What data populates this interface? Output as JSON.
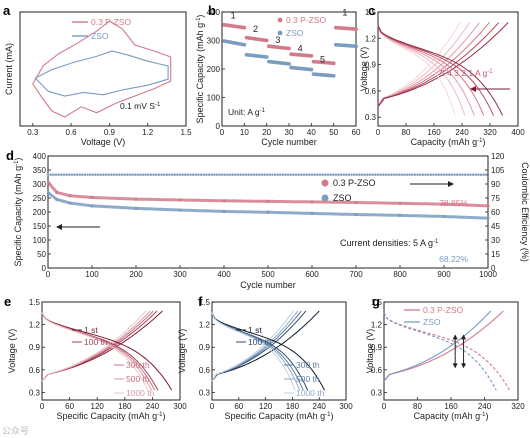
{
  "colors": {
    "pzso": "#d27a8a",
    "zso": "#7a9cbf",
    "ce": "#86a7c8",
    "axis": "#222222",
    "dark_pink": "#9b3550",
    "arrow_blue": "#1f4f9a"
  },
  "chart_data": [
    {
      "id": "a",
      "type": "line",
      "panel_label": "a",
      "xlabel": "Voltage (V)",
      "ylabel": "Current (mA)",
      "xlim": [
        0.2,
        1.5
      ],
      "xticks": [
        0.3,
        0.6,
        0.9,
        1.2,
        1.5
      ],
      "annotation": "0.1 mV S",
      "annotation_sup": "-1",
      "legend": [
        "0.3 P-ZSO",
        "ZSO"
      ],
      "series": [
        {
          "name": "0.3 P-ZSO",
          "color": "#d27a8a",
          "points": [
            [
              0.3,
              -0.1
            ],
            [
              0.38,
              -0.35
            ],
            [
              0.45,
              -0.55
            ],
            [
              0.55,
              -0.65
            ],
            [
              0.68,
              -0.48
            ],
            [
              0.8,
              -0.58
            ],
            [
              0.95,
              -0.42
            ],
            [
              1.1,
              -0.3
            ],
            [
              1.25,
              -0.18
            ],
            [
              1.38,
              -0.05
            ],
            [
              1.38,
              0.35
            ],
            [
              1.25,
              0.45
            ],
            [
              1.1,
              0.55
            ],
            [
              1.0,
              0.82
            ],
            [
              0.9,
              0.95
            ],
            [
              0.8,
              0.78
            ],
            [
              0.65,
              0.58
            ],
            [
              0.5,
              0.4
            ],
            [
              0.38,
              0.2
            ],
            [
              0.3,
              -0.1
            ]
          ]
        },
        {
          "name": "ZSO",
          "color": "#7a9cbf",
          "points": [
            [
              0.32,
              0.0
            ],
            [
              0.42,
              -0.22
            ],
            [
              0.55,
              -0.3
            ],
            [
              0.7,
              -0.24
            ],
            [
              0.85,
              -0.28
            ],
            [
              1.0,
              -0.2
            ],
            [
              1.2,
              -0.12
            ],
            [
              1.36,
              -0.02
            ],
            [
              1.36,
              0.2
            ],
            [
              1.2,
              0.28
            ],
            [
              1.05,
              0.38
            ],
            [
              0.92,
              0.45
            ],
            [
              0.8,
              0.36
            ],
            [
              0.62,
              0.26
            ],
            [
              0.45,
              0.14
            ],
            [
              0.32,
              0.0
            ]
          ]
        }
      ]
    },
    {
      "id": "b",
      "type": "scatter",
      "panel_label": "b",
      "xlabel": "Cycle number",
      "ylabel": "Specific Capacity (mAh g",
      "ylabel_sup": "-1",
      "ylabel_tail": ")",
      "xlim": [
        0,
        60
      ],
      "ylim": [
        0,
        400
      ],
      "xticks": [
        0,
        10,
        20,
        30,
        40,
        50,
        60
      ],
      "yticks": [
        0,
        100,
        200,
        300,
        400
      ],
      "unit_label": "Unit: A g",
      "unit_label_sup": "-1",
      "rate_labels": [
        {
          "text": "1",
          "x": 5,
          "y": 378
        },
        {
          "text": "2",
          "x": 15,
          "y": 330
        },
        {
          "text": "3",
          "x": 25,
          "y": 292
        },
        {
          "text": "4",
          "x": 35,
          "y": 262
        },
        {
          "text": "5",
          "x": 45,
          "y": 222
        },
        {
          "text": "1",
          "x": 55,
          "y": 388
        }
      ],
      "legend": [
        "0.3 P-ZSO",
        "ZSO"
      ],
      "series": [
        {
          "name": "0.3 P-ZSO",
          "color": "#d27a8a",
          "segments": [
            {
              "x0": 1,
              "x1": 10,
              "v0": 355,
              "v1": 345
            },
            {
              "x0": 11,
              "x1": 20,
              "v0": 310,
              "v1": 300
            },
            {
              "x0": 21,
              "x1": 30,
              "v0": 280,
              "v1": 272
            },
            {
              "x0": 31,
              "x1": 40,
              "v0": 252,
              "v1": 246
            },
            {
              "x0": 41,
              "x1": 50,
              "v0": 226,
              "v1": 220
            },
            {
              "x0": 51,
              "x1": 60,
              "v0": 345,
              "v1": 340
            }
          ]
        },
        {
          "name": "ZSO",
          "color": "#7a9cbf",
          "segments": [
            {
              "x0": 1,
              "x1": 10,
              "v0": 298,
              "v1": 285
            },
            {
              "x0": 11,
              "x1": 20,
              "v0": 250,
              "v1": 242
            },
            {
              "x0": 21,
              "x1": 30,
              "v0": 226,
              "v1": 218
            },
            {
              "x0": 31,
              "x1": 40,
              "v0": 205,
              "v1": 198
            },
            {
              "x0": 41,
              "x1": 50,
              "v0": 182,
              "v1": 176
            },
            {
              "x0": 51,
              "x1": 60,
              "v0": 285,
              "v1": 280
            }
          ]
        }
      ]
    },
    {
      "id": "c",
      "type": "line",
      "panel_label": "c",
      "xlabel": "Capacity (mAh g",
      "xlabel_sup": "-1",
      "xlabel_tail": ")",
      "ylabel": "Voltage (V)",
      "xlim": [
        0,
        400
      ],
      "ylim": [
        0.2,
        1.5
      ],
      "xticks": [
        0,
        80,
        160,
        240,
        320,
        400
      ],
      "yticks": [
        0.3,
        0.6,
        0.9,
        1.2,
        1.5
      ],
      "annotation": "5 4 3 2 1 A g",
      "annotation_sup": "-1",
      "color_scale": [
        "#f6d6dc",
        "#eebac4",
        "#e49aa8",
        "#d67787",
        "#b8485e",
        "#8e2e45"
      ],
      "charge_caps": [
        235,
        262,
        290,
        318,
        345,
        372
      ],
      "discharge_caps": [
        220,
        248,
        275,
        302,
        330,
        356
      ]
    },
    {
      "id": "d",
      "type": "scatter",
      "panel_label": "d",
      "xlabel": "Cycle number",
      "ylabel": "Specific Capacity (mAh g",
      "ylabel_sup": "-1",
      "ylabel_tail": ")",
      "y2label": "Coulombic Efficiency (%)",
      "xlim": [
        0,
        1000
      ],
      "ylim": [
        0,
        400
      ],
      "y2lim": [
        0,
        120
      ],
      "xticks": [
        0,
        100,
        200,
        300,
        400,
        500,
        600,
        700,
        800,
        900,
        1000
      ],
      "yticks": [
        0,
        50,
        100,
        150,
        200,
        250,
        300,
        350,
        400
      ],
      "y2ticks": [
        0,
        15,
        30,
        45,
        60,
        75,
        90,
        105,
        120
      ],
      "annotation": "Current densities: 5 A g",
      "annotation_sup": "-1",
      "retention": [
        {
          "series": "0.3 P-ZSO",
          "text": "78.85%"
        },
        {
          "series": "ZSO",
          "text": "68.22%"
        }
      ],
      "legend": [
        "0.3 P-ZSO",
        "ZSO"
      ],
      "series": [
        {
          "name": "0.3 P-ZSO",
          "color": "#d27a8a",
          "points": [
            [
              1,
              305
            ],
            [
              20,
              270
            ],
            [
              50,
              258
            ],
            [
              100,
              252
            ],
            [
              200,
              246
            ],
            [
              300,
              243
            ],
            [
              400,
              240
            ],
            [
              500,
              238
            ],
            [
              600,
              236
            ],
            [
              700,
              234
            ],
            [
              800,
              231
            ],
            [
              900,
              228
            ],
            [
              1000,
              222
            ]
          ]
        },
        {
          "name": "ZSO",
          "color": "#7a9cbf",
          "points": [
            [
              1,
              268
            ],
            [
              20,
              245
            ],
            [
              50,
              232
            ],
            [
              100,
              222
            ],
            [
              200,
              213
            ],
            [
              300,
              207
            ],
            [
              400,
              202
            ],
            [
              500,
              199
            ],
            [
              600,
              195
            ],
            [
              700,
              191
            ],
            [
              800,
              188
            ],
            [
              900,
              184
            ],
            [
              1000,
              178
            ]
          ]
        },
        {
          "name": "Coulombic Efficiency",
          "color": "#86a7c8",
          "axis": "y2",
          "points": [
            [
              0,
              100
            ],
            [
              1000,
              100
            ]
          ]
        }
      ]
    },
    {
      "id": "e",
      "type": "line",
      "panel_label": "e",
      "xlabel": "Specific Capacity (mAh g",
      "xlabel_sup": "-1",
      "xlabel_tail": ")",
      "ylabel": "Voltage (V)",
      "xlim": [
        0,
        300
      ],
      "ylim": [
        0.2,
        1.5
      ],
      "xticks": [
        0,
        60,
        120,
        180,
        240,
        300
      ],
      "yticks": [
        0.3,
        0.6,
        0.9,
        1.2,
        1.5
      ],
      "labels": [
        "1 st",
        "100 th",
        "300 th",
        "500 th",
        "1000 th"
      ],
      "colors": [
        "#7a1b36",
        "#a84059",
        "#c8707f",
        "#d99aa5",
        "#ebc4cb"
      ],
      "charge_caps": [
        262,
        250,
        242,
        235,
        226
      ],
      "discharge_caps": [
        282,
        252,
        245,
        238,
        230
      ]
    },
    {
      "id": "f",
      "type": "line",
      "panel_label": "f",
      "xlabel": "Specific Capacity (mAh g",
      "xlabel_sup": "-1",
      "xlabel_tail": ")",
      "ylabel": "Voltage (V)",
      "xlim": [
        0,
        300
      ],
      "ylim": [
        0.2,
        1.5
      ],
      "xticks": [
        0,
        60,
        120,
        180,
        240,
        300
      ],
      "yticks": [
        0.3,
        0.6,
        0.9,
        1.2,
        1.5
      ],
      "labels": [
        "1 st",
        "100 th",
        "300 th",
        "500 th",
        "1000 th"
      ],
      "colors": [
        "#101c2e",
        "#2f4e72",
        "#5d7ea4",
        "#8ea9c7",
        "#bfd0e3"
      ],
      "charge_caps": [
        240,
        210,
        200,
        192,
        182
      ],
      "discharge_caps": [
        252,
        214,
        204,
        196,
        186
      ]
    },
    {
      "id": "g",
      "type": "line",
      "panel_label": "g",
      "xlabel": "Capacity (mAh g",
      "xlabel_sup": "-1",
      "xlabel_tail": ")",
      "ylabel": "Voltage (V)",
      "xlim": [
        0,
        320
      ],
      "ylim": [
        0.2,
        1.5
      ],
      "xticks": [
        0,
        80,
        160,
        240,
        320
      ],
      "yticks": [
        0.3,
        0.6,
        0.9,
        1.2,
        1.5
      ],
      "legend": [
        "0.3 P-ZSO",
        "ZSO"
      ],
      "series": [
        {
          "name": "0.3 P-ZSO",
          "color": "#d27a8a",
          "charge_cap": 285,
          "discharge_cap": 300
        },
        {
          "name": "ZSO",
          "color": "#7a9cbf",
          "charge_cap": 255,
          "discharge_cap": 268
        }
      ],
      "arrows": [
        {
          "x": 170,
          "y_from": 0.62,
          "y_to": 1.07
        },
        {
          "x": 190,
          "y_from": 0.62,
          "y_to": 1.07
        }
      ]
    }
  ],
  "watermark": "公众号"
}
